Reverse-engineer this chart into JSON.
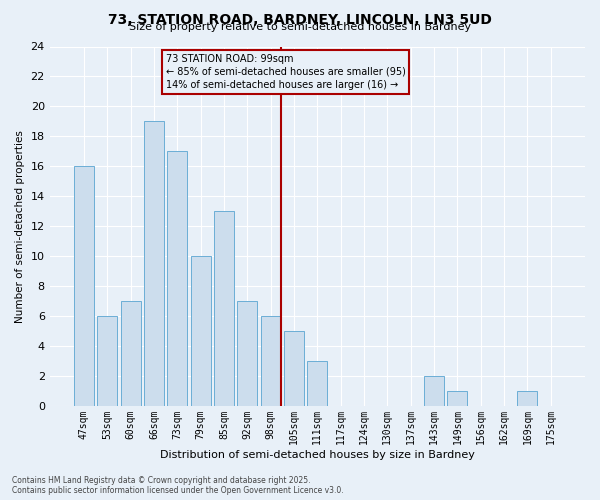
{
  "title_line1": "73, STATION ROAD, BARDNEY, LINCOLN, LN3 5UD",
  "title_line2": "Size of property relative to semi-detached houses in Bardney",
  "xlabel": "Distribution of semi-detached houses by size in Bardney",
  "ylabel": "Number of semi-detached properties",
  "categories": [
    "47sqm",
    "53sqm",
    "60sqm",
    "66sqm",
    "73sqm",
    "79sqm",
    "85sqm",
    "92sqm",
    "98sqm",
    "105sqm",
    "111sqm",
    "117sqm",
    "124sqm",
    "130sqm",
    "137sqm",
    "143sqm",
    "149sqm",
    "156sqm",
    "162sqm",
    "169sqm",
    "175sqm"
  ],
  "values": [
    16,
    6,
    7,
    19,
    17,
    10,
    13,
    7,
    6,
    5,
    3,
    0,
    0,
    0,
    0,
    2,
    1,
    0,
    0,
    1,
    0
  ],
  "bar_color": "#ccdded",
  "bar_edge_color": "#6baed6",
  "annotation_title": "73 STATION ROAD: 99sqm",
  "annotation_line2": "← 85% of semi-detached houses are smaller (95)",
  "annotation_line3": "14% of semi-detached houses are larger (16) →",
  "annotation_box_color": "#aa0000",
  "vline_color": "#aa0000",
  "ylim": [
    0,
    24
  ],
  "yticks": [
    0,
    2,
    4,
    6,
    8,
    10,
    12,
    14,
    16,
    18,
    20,
    22,
    24
  ],
  "background_color": "#e8f0f8",
  "grid_color": "#ffffff",
  "footer_line1": "Contains HM Land Registry data © Crown copyright and database right 2025.",
  "footer_line2": "Contains public sector information licensed under the Open Government Licence v3.0."
}
